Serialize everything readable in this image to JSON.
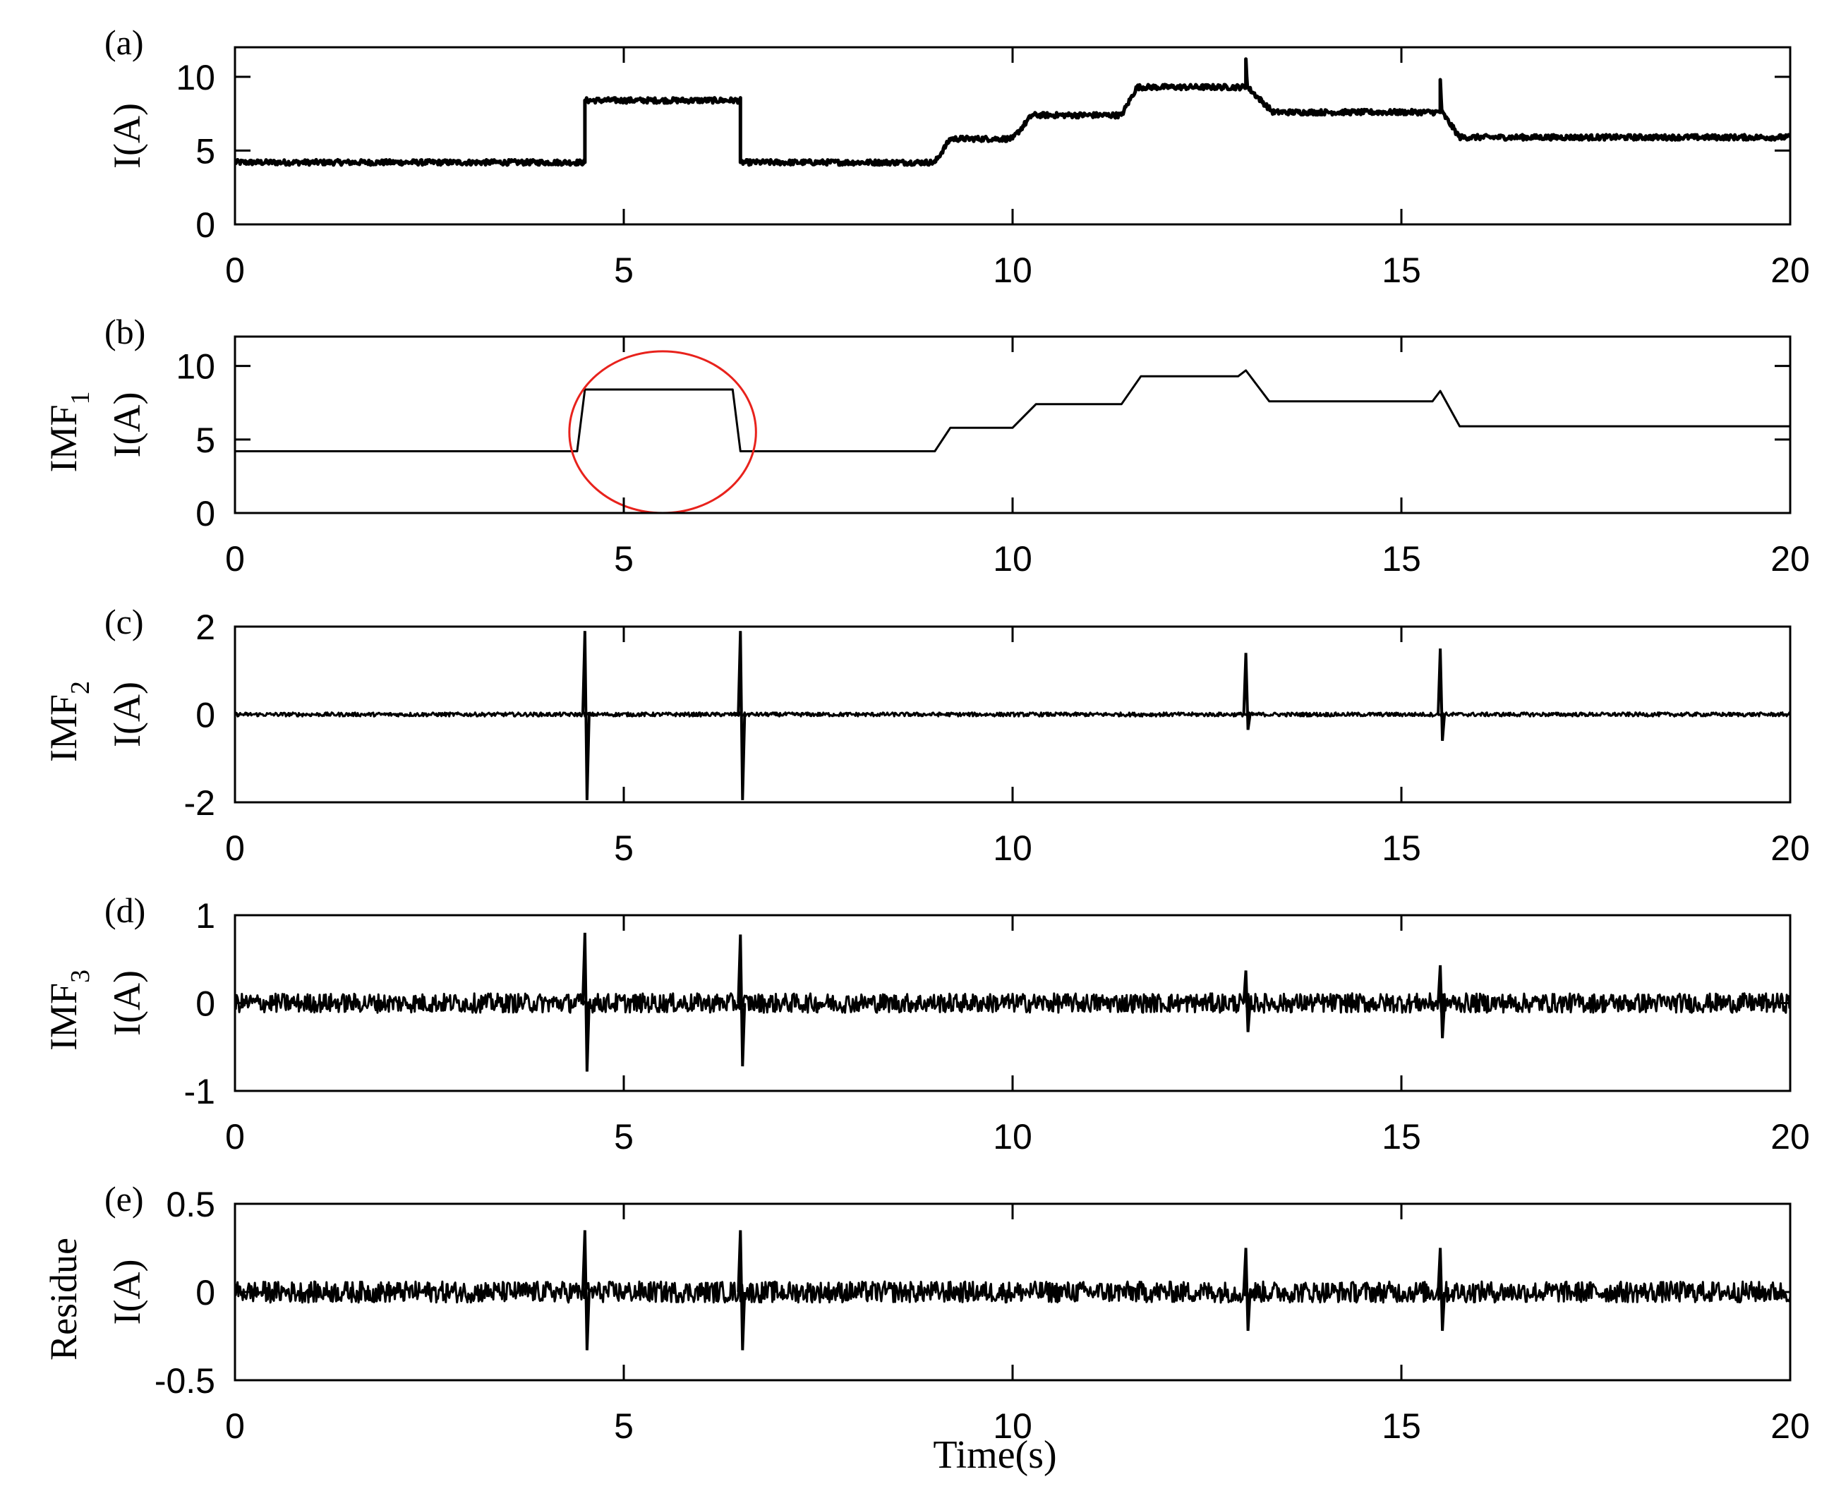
{
  "figure": {
    "xlabel": "Time(s)"
  },
  "chart_data": [
    {
      "type": "line",
      "panel": "(a)",
      "ylabel": "I(A)",
      "ylabel_prefix": "",
      "ylabel_sub": "",
      "xlim": [
        0,
        20
      ],
      "ylim": [
        0,
        12
      ],
      "xticks": [
        "0",
        "5",
        "10",
        "15",
        "20"
      ],
      "yticks": [
        {
          "v": 0,
          "label": "0"
        },
        {
          "v": 5,
          "label": "5"
        },
        {
          "v": 10,
          "label": "10"
        }
      ],
      "series": [
        {
          "points": [
            [
              0,
              4.2
            ],
            [
              4.5,
              4.2
            ],
            [
              4.5,
              8.4
            ],
            [
              6.5,
              8.4
            ],
            [
              6.5,
              4.2
            ],
            [
              9.0,
              4.2
            ],
            [
              9.2,
              5.8
            ],
            [
              10.0,
              5.8
            ],
            [
              10.25,
              7.4
            ],
            [
              11.4,
              7.4
            ],
            [
              11.6,
              9.3
            ],
            [
              13.0,
              9.3
            ],
            [
              13.0,
              11.2
            ],
            [
              13.02,
              9.3
            ],
            [
              13.35,
              7.6
            ],
            [
              15.5,
              7.6
            ],
            [
              15.5,
              9.8
            ],
            [
              15.52,
              7.6
            ],
            [
              15.75,
              5.9
            ],
            [
              20,
              5.9
            ]
          ],
          "noise": 0.18,
          "stroke": 5
        }
      ]
    },
    {
      "type": "line",
      "panel": "(b)",
      "ylabel": "I(A)",
      "ylabel_prefix": "IMF",
      "ylabel_sub": "1",
      "xlim": [
        0,
        20
      ],
      "ylim": [
        0,
        12
      ],
      "xticks": [
        "0",
        "5",
        "10",
        "15",
        "20"
      ],
      "yticks": [
        {
          "v": 0,
          "label": "0"
        },
        {
          "v": 5,
          "label": "5"
        },
        {
          "v": 10,
          "label": "10"
        }
      ],
      "series": [
        {
          "points": [
            [
              0,
              4.2
            ],
            [
              4.4,
              4.2
            ],
            [
              4.5,
              8.4
            ],
            [
              6.4,
              8.4
            ],
            [
              6.5,
              4.2
            ],
            [
              9.0,
              4.2
            ],
            [
              9.2,
              5.8
            ],
            [
              10.0,
              5.8
            ],
            [
              10.3,
              7.4
            ],
            [
              11.4,
              7.4
            ],
            [
              11.65,
              9.3
            ],
            [
              12.9,
              9.3
            ],
            [
              13.0,
              9.7
            ],
            [
              13.3,
              7.6
            ],
            [
              15.4,
              7.6
            ],
            [
              15.5,
              8.3
            ],
            [
              15.75,
              5.9
            ],
            [
              20,
              5.9
            ]
          ],
          "noise": 0,
          "stroke": 3
        }
      ],
      "annotation": {
        "shape": "ellipse",
        "cx": 5.5,
        "cy": 5.5,
        "rx": 1.2,
        "ry": 5.5,
        "color": "#e8221c"
      }
    },
    {
      "type": "line",
      "panel": "(c)",
      "ylabel": "I(A)",
      "ylabel_prefix": "IMF",
      "ylabel_sub": "2",
      "xlim": [
        0,
        20
      ],
      "ylim": [
        -2,
        2
      ],
      "xticks": [
        "0",
        "5",
        "10",
        "15",
        "20"
      ],
      "yticks": [
        {
          "v": -2,
          "label": "-2"
        },
        {
          "v": 0,
          "label": "0"
        },
        {
          "v": 2,
          "label": "2"
        }
      ],
      "series": [
        {
          "points": [
            [
              0,
              0
            ],
            [
              20,
              0
            ]
          ],
          "noise": 0.045,
          "spikes": [
            [
              4.5,
              1.9,
              -1.95
            ],
            [
              6.5,
              1.9,
              -1.95
            ],
            [
              13.0,
              1.4,
              -0.35
            ],
            [
              15.5,
              1.5,
              -0.6
            ]
          ],
          "stroke": 3
        }
      ]
    },
    {
      "type": "line",
      "panel": "(d)",
      "ylabel": "I(A)",
      "ylabel_prefix": "IMF",
      "ylabel_sub": "3",
      "xlim": [
        0,
        20
      ],
      "ylim": [
        -1,
        1
      ],
      "xticks": [
        "0",
        "5",
        "10",
        "15",
        "20"
      ],
      "yticks": [
        {
          "v": -1,
          "label": "-1"
        },
        {
          "v": 0,
          "label": "0"
        },
        {
          "v": 1,
          "label": "1"
        }
      ],
      "series": [
        {
          "points": [
            [
              0,
              0
            ],
            [
              20,
              0
            ]
          ],
          "noise": 0.11,
          "spikes": [
            [
              4.5,
              0.8,
              -0.78
            ],
            [
              6.5,
              0.78,
              -0.72
            ],
            [
              13.0,
              0.37,
              -0.33
            ],
            [
              15.5,
              0.43,
              -0.4
            ]
          ],
          "stroke": 3
        }
      ]
    },
    {
      "type": "line",
      "panel": "(e)",
      "ylabel": "I(A)",
      "ylabel_prefix": "Residue",
      "ylabel_sub": "",
      "xlim": [
        0,
        20
      ],
      "ylim": [
        -0.5,
        0.5
      ],
      "xticks": [
        "0",
        "5",
        "10",
        "15",
        "20"
      ],
      "yticks": [
        {
          "v": -0.5,
          "label": "-0.5"
        },
        {
          "v": 0,
          "label": "0"
        },
        {
          "v": 0.5,
          "label": "0.5"
        }
      ],
      "series": [
        {
          "points": [
            [
              0,
              0
            ],
            [
              20,
              0
            ]
          ],
          "noise": 0.06,
          "spikes": [
            [
              4.5,
              0.35,
              -0.33
            ],
            [
              6.5,
              0.35,
              -0.33
            ],
            [
              13.0,
              0.25,
              -0.22
            ],
            [
              15.5,
              0.25,
              -0.22
            ]
          ],
          "stroke": 3
        }
      ]
    }
  ]
}
